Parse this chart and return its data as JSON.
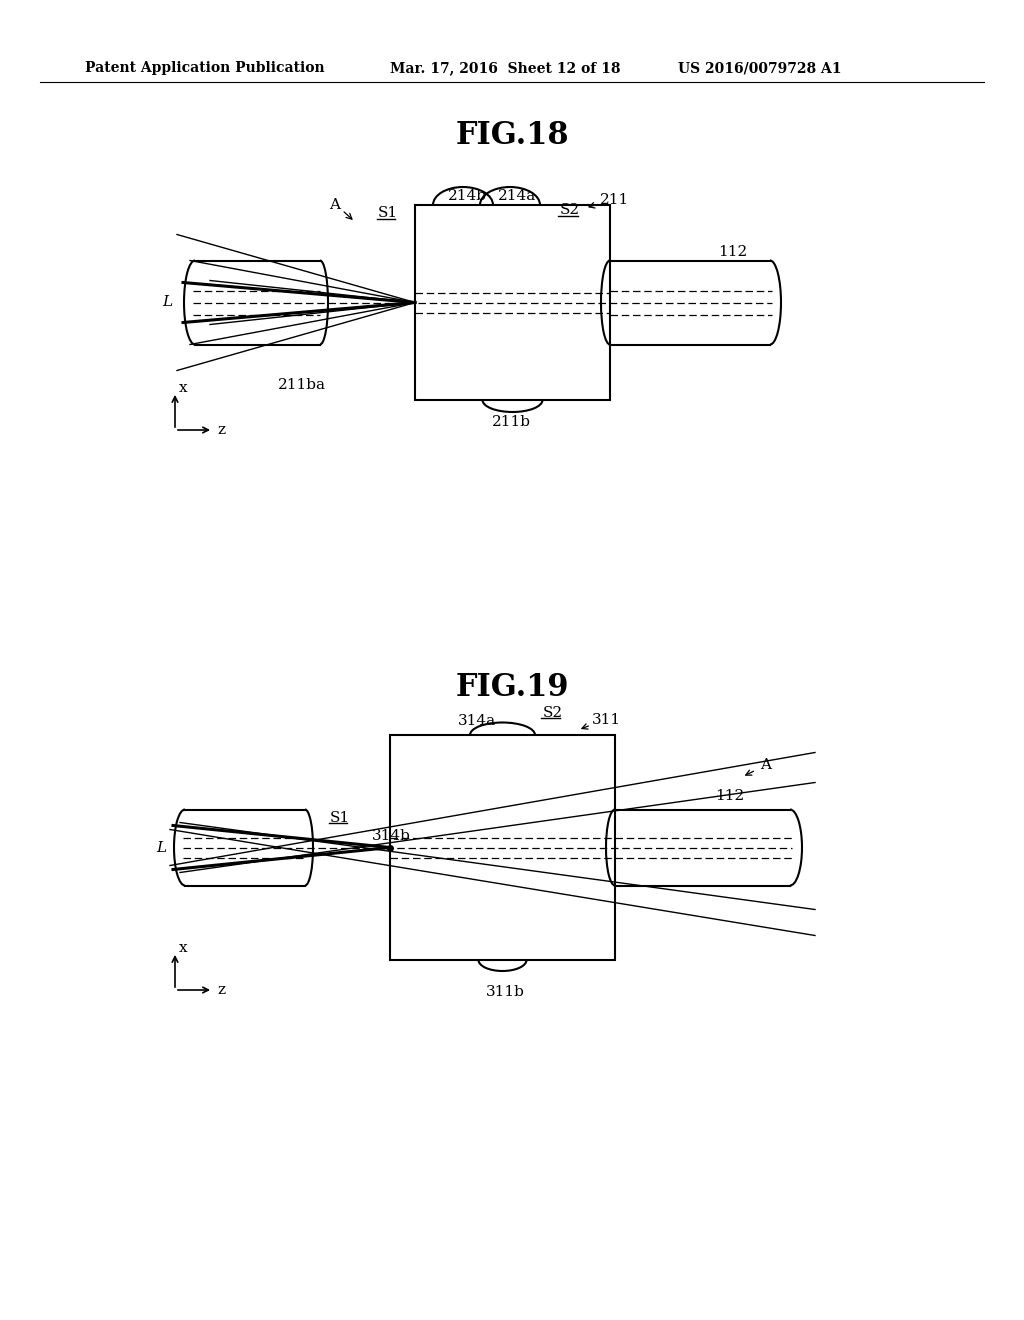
{
  "bg_color": "#ffffff",
  "header_text": "Patent Application Publication",
  "header_date": "Mar. 17, 2016  Sheet 12 of 18",
  "header_patent": "US 2016/0079728 A1",
  "fig18_title": "FIG.18",
  "fig19_title": "FIG.19"
}
